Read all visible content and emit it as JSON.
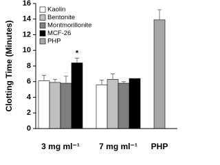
{
  "chart_data": {
    "type": "bar",
    "y_label": "Clotting Time (Minutes)",
    "categories": [
      "3 mg ml⁻¹",
      "7 mg ml⁻¹",
      "PHP"
    ],
    "series": [
      {
        "name": "Kaolin",
        "color": "#ffffff",
        "values": [
          6.1,
          5.6,
          null
        ],
        "errors": [
          0.7,
          0.6,
          null
        ]
      },
      {
        "name": "Bentonite",
        "color": "#c0c0c0",
        "values": [
          5.9,
          6.3,
          null
        ],
        "errors": [
          0.4,
          0.7,
          null
        ]
      },
      {
        "name": "Montmorillonite",
        "color": "#7f7f7f",
        "values": [
          5.8,
          5.8,
          null
        ],
        "errors": [
          0.9,
          0.2,
          null
        ]
      },
      {
        "name": "MCF-26",
        "color": "#000000",
        "values": [
          8.4,
          6.4,
          null
        ],
        "errors": [
          0.6,
          0.0,
          null
        ],
        "annotations": [
          "*",
          null,
          null
        ]
      },
      {
        "name": "PHP",
        "color": "#a6a6a6",
        "values": [
          null,
          null,
          13.9
        ],
        "errors": [
          null,
          null,
          1.3
        ]
      }
    ],
    "ylim": [
      0,
      16
    ],
    "yticks": [
      0,
      2,
      4,
      6,
      8,
      10,
      12,
      14,
      16
    ],
    "legend": "upper-left"
  }
}
